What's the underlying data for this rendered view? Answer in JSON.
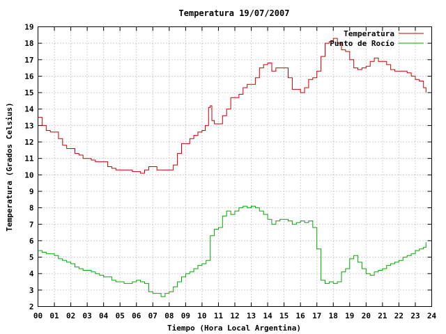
{
  "chart_data": {
    "type": "line",
    "title": "Temperatura 19/07/2007",
    "xlabel": "Tiempo (Hora Local Argentina)",
    "ylabel": "Temperatura (Grados Celsius)",
    "xlim": [
      0,
      24
    ],
    "ylim": [
      2,
      19
    ],
    "x_tick_labels": [
      "00",
      "01",
      "02",
      "03",
      "04",
      "05",
      "06",
      "07",
      "08",
      "09",
      "10",
      "11",
      "12",
      "13",
      "14",
      "15",
      "16",
      "17",
      "18",
      "19",
      "20",
      "21",
      "22",
      "23",
      "24"
    ],
    "y_tick_labels": [
      "2",
      "3",
      "4",
      "5",
      "6",
      "7",
      "8",
      "9",
      "10",
      "11",
      "12",
      "13",
      "14",
      "15",
      "16",
      "17",
      "18",
      "19"
    ],
    "grid": true,
    "legend_position": "top-right",
    "series": [
      {
        "name": "Temperatura",
        "color": "#cc0000",
        "x": [
          0.0,
          0.25,
          0.5,
          0.75,
          1.0,
          1.25,
          1.5,
          1.75,
          2.0,
          2.25,
          2.5,
          2.75,
          3.0,
          3.25,
          3.5,
          3.75,
          4.0,
          4.25,
          4.5,
          4.75,
          5.0,
          5.25,
          5.5,
          5.75,
          6.0,
          6.25,
          6.5,
          6.75,
          7.0,
          7.25,
          7.5,
          7.75,
          8.0,
          8.25,
          8.5,
          8.75,
          9.0,
          9.25,
          9.5,
          9.75,
          10.0,
          10.2,
          10.4,
          10.5,
          10.6,
          10.75,
          11.0,
          11.25,
          11.5,
          11.75,
          12.0,
          12.25,
          12.5,
          12.75,
          13.0,
          13.25,
          13.5,
          13.75,
          14.0,
          14.25,
          14.5,
          14.75,
          15.0,
          15.25,
          15.5,
          15.75,
          16.0,
          16.25,
          16.5,
          16.75,
          17.0,
          17.25,
          17.5,
          17.75,
          18.0,
          18.25,
          18.5,
          18.75,
          19.0,
          19.25,
          19.5,
          19.75,
          20.0,
          20.25,
          20.5,
          20.75,
          21.0,
          21.25,
          21.5,
          21.75,
          22.0,
          22.25,
          22.5,
          22.75,
          23.0,
          23.25,
          23.5,
          23.65
        ],
        "values": [
          13.5,
          13.0,
          12.7,
          12.6,
          12.6,
          12.2,
          11.8,
          11.6,
          11.6,
          11.3,
          11.2,
          11.0,
          11.0,
          10.9,
          10.8,
          10.8,
          10.8,
          10.5,
          10.4,
          10.3,
          10.3,
          10.3,
          10.3,
          10.2,
          10.2,
          10.1,
          10.3,
          10.5,
          10.5,
          10.3,
          10.3,
          10.3,
          10.3,
          10.6,
          11.3,
          11.9,
          11.9,
          12.2,
          12.4,
          12.6,
          12.7,
          13.0,
          14.1,
          14.2,
          13.3,
          13.1,
          13.1,
          13.6,
          14.0,
          14.7,
          14.7,
          14.9,
          15.3,
          15.5,
          15.5,
          15.9,
          16.5,
          16.7,
          16.8,
          16.3,
          16.5,
          16.5,
          16.5,
          15.9,
          15.2,
          15.2,
          15.0,
          15.3,
          15.8,
          15.9,
          16.3,
          17.2,
          18.0,
          18.1,
          18.3,
          18.0,
          17.6,
          17.5,
          17.0,
          16.5,
          16.4,
          16.5,
          16.6,
          16.9,
          17.1,
          16.9,
          16.9,
          16.7,
          16.4,
          16.3,
          16.3,
          16.3,
          16.2,
          16.0,
          15.8,
          15.7,
          15.3,
          15.0
        ]
      },
      {
        "name": "Punto de Rocío",
        "color": "#00aa00",
        "x": [
          0.0,
          0.25,
          0.5,
          0.75,
          1.0,
          1.25,
          1.5,
          1.75,
          2.0,
          2.25,
          2.5,
          2.75,
          3.0,
          3.25,
          3.5,
          3.75,
          4.0,
          4.25,
          4.5,
          4.75,
          5.0,
          5.25,
          5.5,
          5.75,
          6.0,
          6.25,
          6.5,
          6.75,
          7.0,
          7.25,
          7.5,
          7.75,
          8.0,
          8.25,
          8.5,
          8.75,
          9.0,
          9.25,
          9.5,
          9.75,
          10.0,
          10.25,
          10.5,
          10.75,
          11.0,
          11.25,
          11.5,
          11.75,
          12.0,
          12.25,
          12.5,
          12.75,
          13.0,
          13.25,
          13.5,
          13.75,
          14.0,
          14.25,
          14.5,
          14.75,
          15.0,
          15.25,
          15.5,
          15.75,
          16.0,
          16.25,
          16.5,
          16.75,
          17.0,
          17.25,
          17.5,
          17.75,
          18.0,
          18.25,
          18.5,
          18.75,
          19.0,
          19.25,
          19.5,
          19.75,
          20.0,
          20.25,
          20.5,
          20.75,
          21.0,
          21.25,
          21.5,
          21.75,
          22.0,
          22.25,
          22.5,
          22.75,
          23.0,
          23.25,
          23.5,
          23.65
        ],
        "values": [
          5.4,
          5.3,
          5.2,
          5.2,
          5.1,
          4.9,
          4.8,
          4.7,
          4.6,
          4.4,
          4.3,
          4.2,
          4.2,
          4.1,
          4.0,
          3.9,
          3.8,
          3.8,
          3.6,
          3.5,
          3.5,
          3.4,
          3.4,
          3.5,
          3.6,
          3.5,
          3.4,
          2.9,
          2.8,
          2.8,
          2.6,
          2.8,
          2.9,
          3.2,
          3.5,
          3.8,
          4.0,
          4.1,
          4.3,
          4.5,
          4.6,
          4.8,
          6.3,
          6.7,
          6.8,
          7.5,
          7.8,
          7.6,
          7.8,
          8.0,
          8.1,
          8.0,
          8.1,
          8.0,
          7.8,
          7.6,
          7.3,
          7.0,
          7.2,
          7.3,
          7.3,
          7.2,
          7.0,
          7.1,
          7.2,
          7.1,
          7.2,
          6.8,
          5.5,
          3.6,
          3.4,
          3.5,
          3.4,
          3.5,
          4.1,
          4.3,
          4.9,
          5.1,
          4.7,
          4.3,
          4.0,
          3.9,
          4.1,
          4.2,
          4.3,
          4.5,
          4.6,
          4.7,
          4.8,
          5.0,
          5.1,
          5.2,
          5.4,
          5.5,
          5.6,
          5.9
        ]
      }
    ]
  }
}
